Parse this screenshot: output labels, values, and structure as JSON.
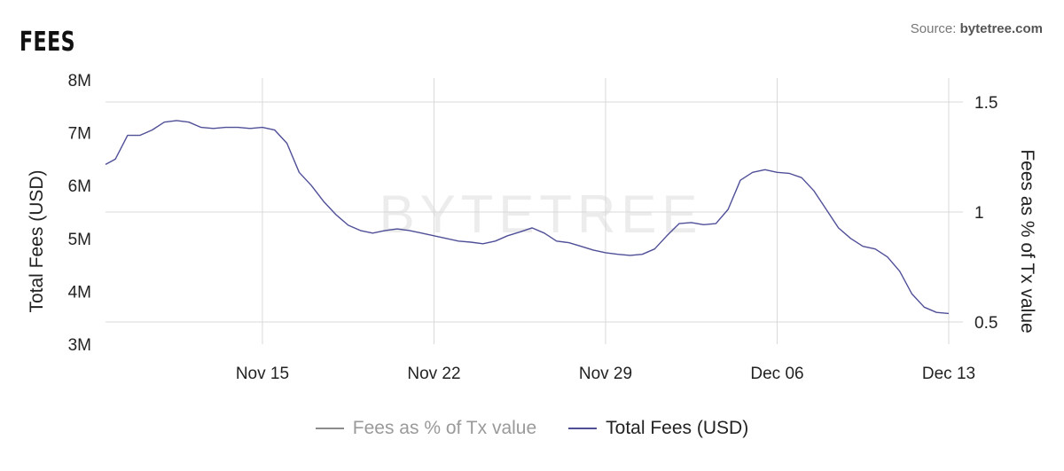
{
  "header": {
    "title": "FEES",
    "source_prefix": "Source: ",
    "source_name": "bytetree.com"
  },
  "watermark": "BYTETREE",
  "legend": [
    {
      "label": "Fees as % of Tx value",
      "color": "#8c8c8c",
      "label_color": "#9a9a9a"
    },
    {
      "label": "Total Fees (USD)",
      "color": "#4f4f98",
      "label_color": "#222222"
    }
  ],
  "chart_data": {
    "type": "line",
    "x_ticks": [
      "Nov 15",
      "Nov 22",
      "Nov 29",
      "Dec 06",
      "Dec 13"
    ],
    "x_tick_days": [
      15,
      22,
      29,
      36,
      43
    ],
    "xlim_days": [
      8.6,
      43.0
    ],
    "y_left": {
      "label": "Total Fees (USD)",
      "ticks": [
        "3M",
        "4M",
        "5M",
        "6M",
        "7M",
        "8M"
      ],
      "ylim": [
        3000000,
        8000000
      ]
    },
    "y_right": {
      "label": "Fees as % of Tx value",
      "ticks": [
        "0.5",
        "1",
        "1.5"
      ],
      "tick_values": [
        0.5,
        1,
        1.5
      ],
      "ylim": [
        0.4,
        1.6
      ]
    },
    "grid": true,
    "legend_position": "bottom",
    "series": [
      {
        "name": "Total Fees (USD)",
        "axis": "left",
        "color": "#4f4f98",
        "x": [
          8.6,
          9.0,
          9.5,
          10.0,
          10.5,
          11.0,
          11.5,
          12.0,
          12.5,
          13.0,
          13.5,
          14.0,
          14.5,
          15.0,
          15.5,
          16.0,
          16.5,
          17.0,
          17.5,
          18.0,
          18.5,
          19.0,
          19.5,
          20.0,
          20.5,
          21.0,
          21.5,
          22.0,
          22.5,
          23.0,
          23.5,
          24.0,
          24.5,
          25.0,
          25.5,
          26.0,
          26.5,
          27.0,
          27.5,
          28.0,
          28.5,
          29.0,
          29.5,
          30.0,
          30.5,
          31.0,
          31.5,
          32.0,
          32.5,
          33.0,
          33.5,
          34.0,
          34.5,
          35.0,
          35.5,
          36.0,
          36.5,
          37.0,
          37.5,
          38.0,
          38.5,
          39.0,
          39.5,
          40.0,
          40.5,
          41.0,
          41.5,
          42.0,
          42.5,
          43.0
        ],
        "values": [
          6400000,
          6500000,
          6950000,
          6950000,
          7050000,
          7200000,
          7230000,
          7200000,
          7100000,
          7080000,
          7100000,
          7100000,
          7080000,
          7100000,
          7050000,
          6800000,
          6250000,
          6000000,
          5700000,
          5450000,
          5250000,
          5150000,
          5100000,
          5150000,
          5180000,
          5150000,
          5100000,
          5050000,
          5000000,
          4950000,
          4930000,
          4900000,
          4950000,
          5050000,
          5120000,
          5200000,
          5100000,
          4950000,
          4920000,
          4850000,
          4780000,
          4730000,
          4700000,
          4680000,
          4700000,
          4800000,
          5050000,
          5280000,
          5300000,
          5260000,
          5280000,
          5550000,
          6100000,
          6250000,
          6300000,
          6250000,
          6230000,
          6150000,
          5900000,
          5550000,
          5200000,
          5000000,
          4850000,
          4800000,
          4650000,
          4380000,
          3950000,
          3700000,
          3600000,
          3580000
        ]
      }
    ]
  }
}
